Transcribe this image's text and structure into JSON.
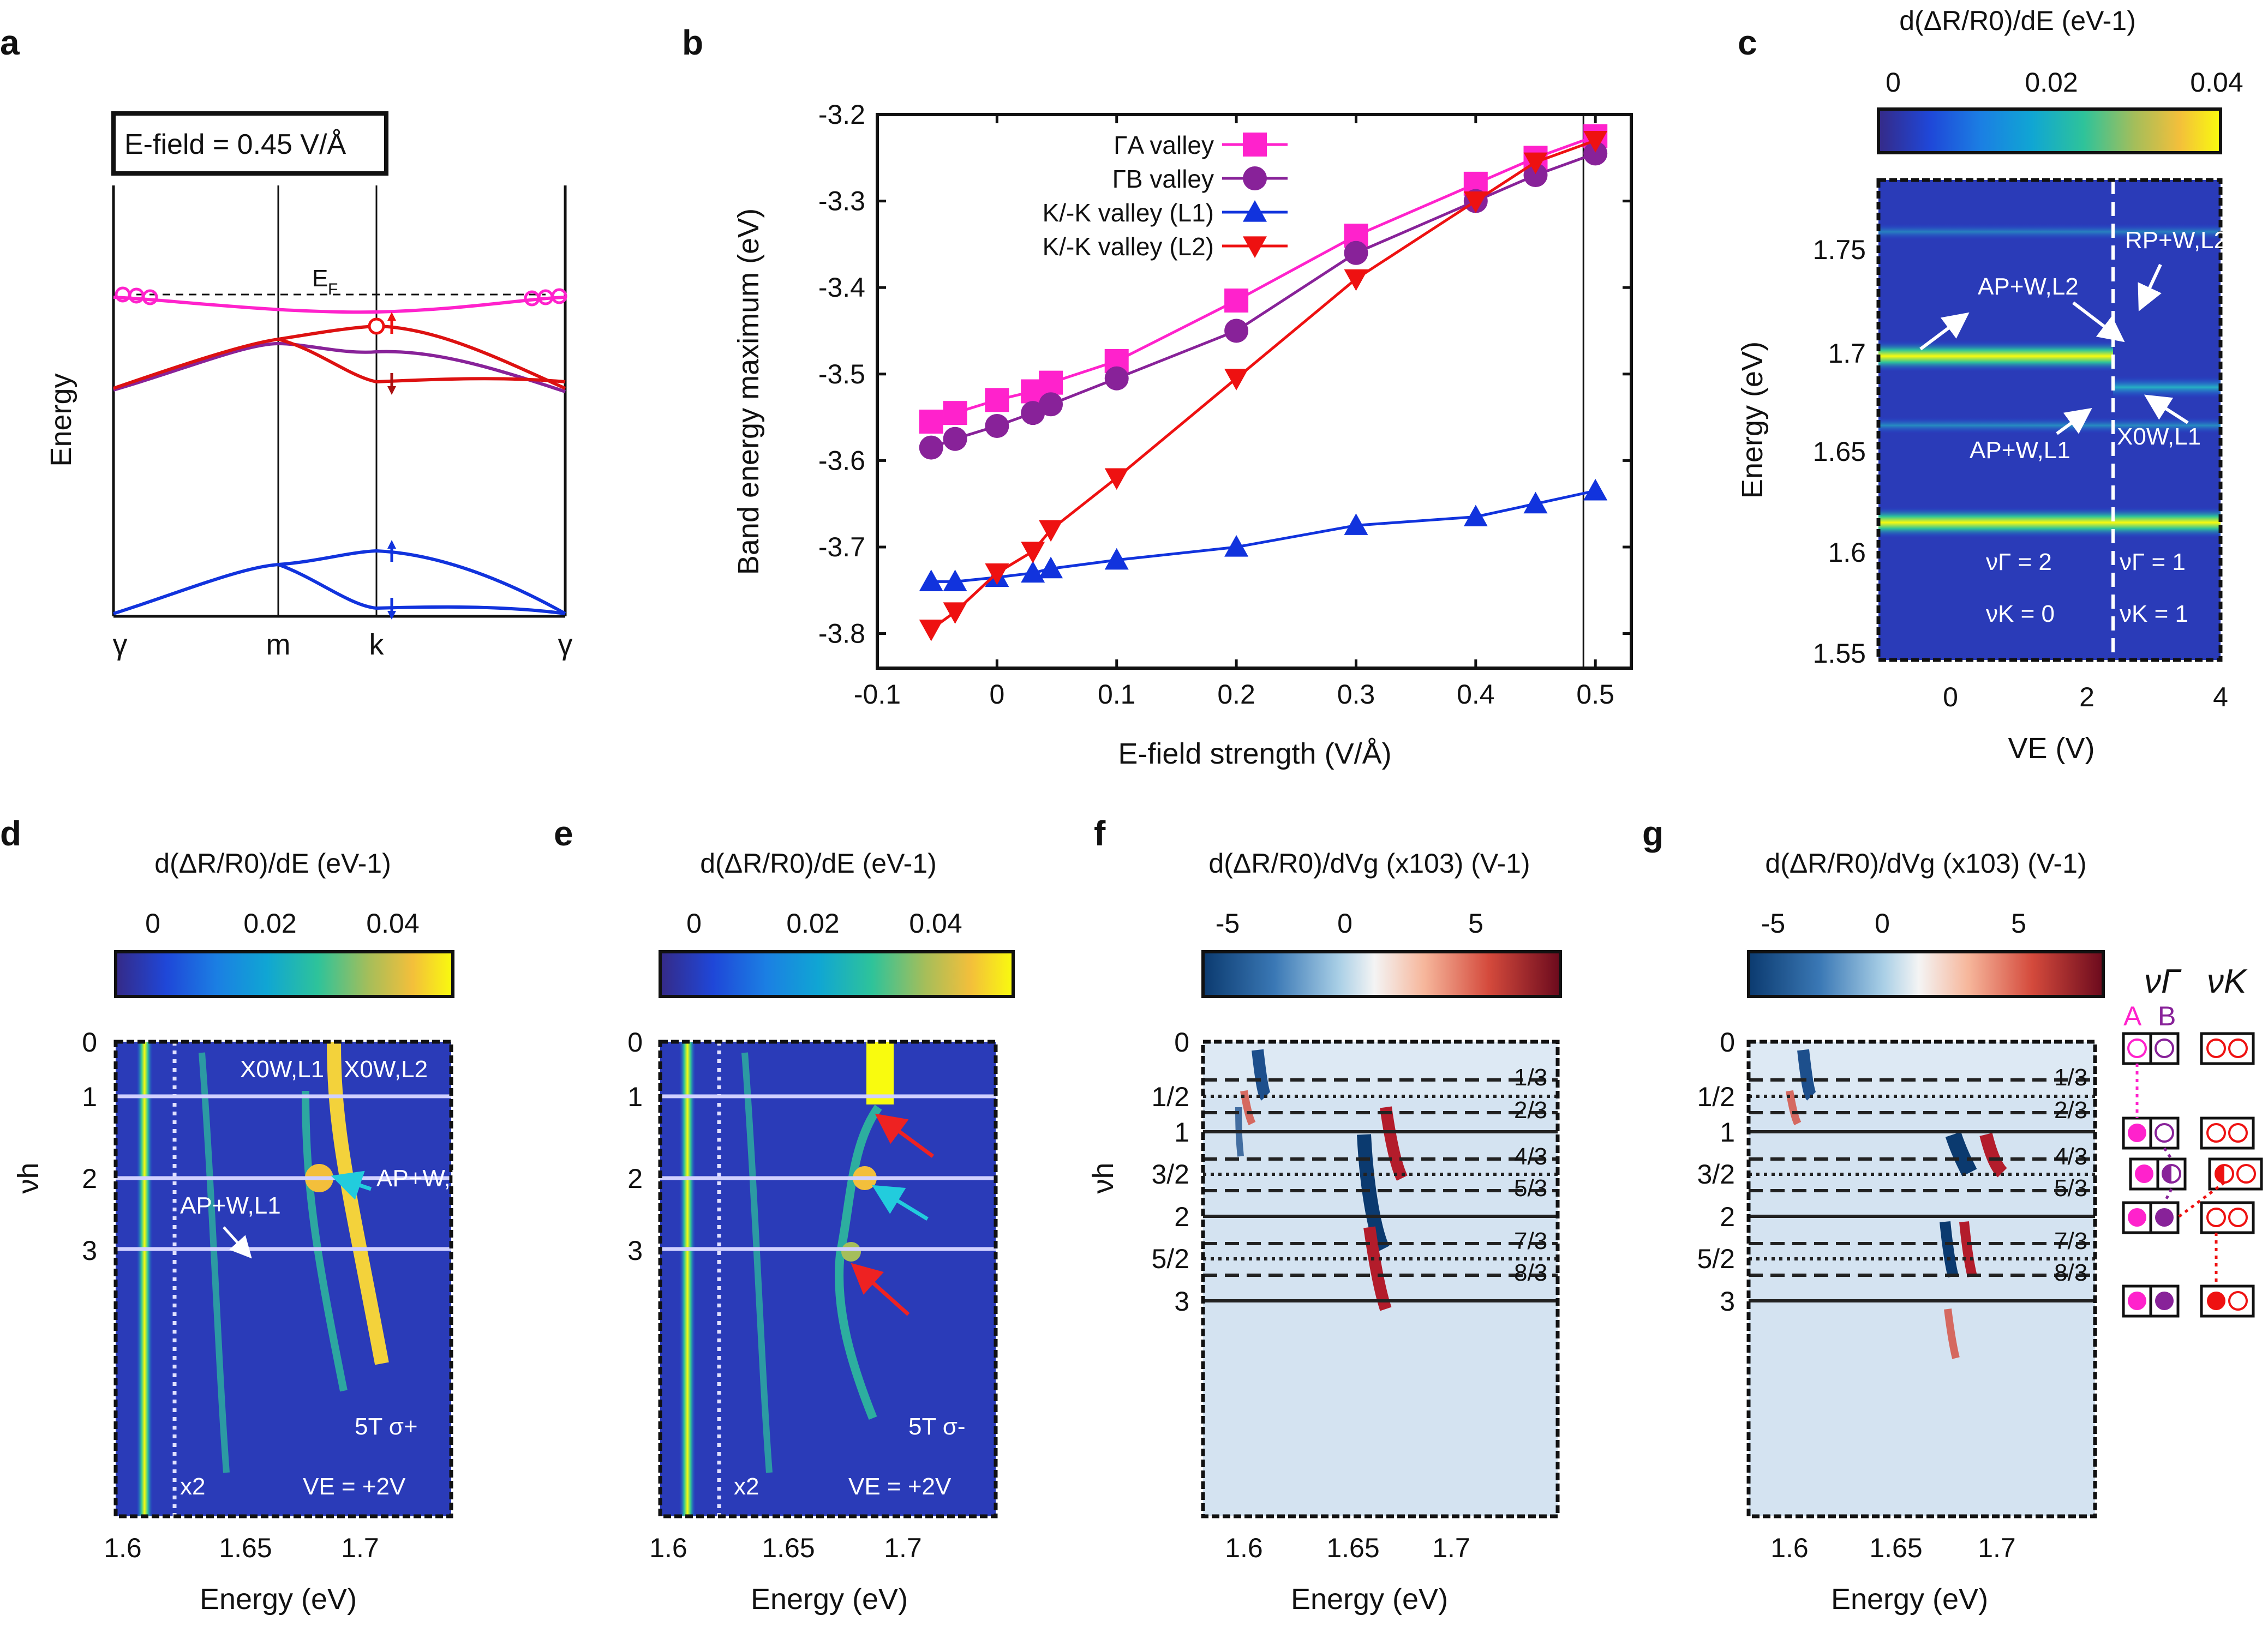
{
  "panels": {
    "a": {
      "label": "a",
      "ylabel": "Energy",
      "field_box": "E-field = 0.45 V/Å",
      "fermi_label": "E",
      "fermi_sub": "F",
      "kpoints": [
        "γ",
        "m",
        "k",
        "γ"
      ]
    },
    "b": {
      "label": "b"
    },
    "c": {
      "label": "c",
      "cbar_label": "d(ΔR/R0)/dE (eV-1)",
      "cbar_ticks": [
        "0",
        "0.02",
        "0.04"
      ],
      "ylabel": "Energy (eV)",
      "xlabel": "VE (V)",
      "yticks": [
        "1.75",
        "1.7",
        "1.65",
        "1.6",
        "1.55"
      ],
      "xticks": [
        "0",
        "2",
        "4"
      ],
      "ann": {
        "rp": "RP+W,L2",
        "ap2": "AP+W,L2",
        "ap1": "AP+W,L1",
        "x0": "X0W,L1",
        "nug_left": "νΓ = 2",
        "nug_right": "νΓ = 1",
        "nuk_left": "νK = 0",
        "nuk_right": "νK = 1"
      }
    },
    "d": {
      "label": "d",
      "cbar_label": "d(ΔR/R0)/dE (eV-1)",
      "cbar_ticks": [
        "0",
        "0.02",
        "0.04"
      ],
      "ylabel": "νh",
      "xlabel": "Energy (eV)",
      "yticks": [
        "0",
        "1",
        "2",
        "3"
      ],
      "xticks": [
        "1.6",
        "1.65",
        "1.7"
      ],
      "ann": {
        "x1": "X0W,L1",
        "x2": "X0W,L2",
        "ap2": "AP+W,L2",
        "ap1": "AP+W,L1",
        "field": "5T  σ+",
        "gate": "VE = +2V",
        "mult": "x2"
      }
    },
    "e": {
      "label": "e",
      "cbar_label": "d(ΔR/R0)/dE (eV-1)",
      "cbar_ticks": [
        "0",
        "0.02",
        "0.04"
      ],
      "xlabel": "Energy (eV)",
      "yticks": [
        "0",
        "1",
        "2",
        "3"
      ],
      "xticks": [
        "1.6",
        "1.65",
        "1.7"
      ],
      "ann": {
        "field": "5T  σ-",
        "gate": "VE = +2V",
        "mult": "x2"
      }
    },
    "f": {
      "label": "f",
      "cbar_label": "d(ΔR/R0)/dVg (x103) (V-1)",
      "cbar_ticks": [
        "-5",
        "0",
        "5"
      ],
      "ylabel": "νh",
      "xlabel": "Energy (eV)",
      "yticks": [
        "0",
        "1/2",
        "1",
        "3/2",
        "2",
        "5/2",
        "3"
      ],
      "xticks": [
        "1.6",
        "1.65",
        "1.7"
      ],
      "fractions": [
        "1/3",
        "2/3",
        "4/3",
        "5/3",
        "7/3",
        "8/3"
      ]
    },
    "g": {
      "label": "g",
      "cbar_label": "d(ΔR/R0)/dVg (x103) (V-1)",
      "cbar_ticks": [
        "-5",
        "0",
        "5"
      ],
      "xlabel": "Energy (eV)",
      "yticks": [
        "0",
        "1/2",
        "1",
        "3/2",
        "2",
        "5/2",
        "3"
      ],
      "xticks": [
        "1.6",
        "1.65",
        "1.7"
      ],
      "fractions": [
        "1/3",
        "2/3",
        "4/3",
        "5/3",
        "7/3",
        "8/3"
      ],
      "legend": {
        "nu_gamma": "νΓ",
        "nu_k": "νK",
        "a": "A",
        "b": "B"
      }
    }
  },
  "colors": {
    "gamma_a": "#ff22cc",
    "gamma_b": "#882299",
    "k_l1": "#1133dd",
    "k_l2": "#ee1111",
    "cyan_arrow": "#22ccdd",
    "red_arrow": "#ee2222"
  },
  "chart_data": {
    "type": "line",
    "title": "",
    "xlabel": "E-field strength (V/Å)",
    "ylabel": "Band energy maximum (eV)",
    "xlim": [
      -0.1,
      0.53
    ],
    "ylim": [
      -3.84,
      -3.2
    ],
    "xticks": [
      "-0.1",
      "0",
      "0.1",
      "0.2",
      "0.3",
      "0.4",
      "0.5"
    ],
    "yticks": [
      "-3.2",
      "-3.3",
      "-3.4",
      "-3.5",
      "-3.6",
      "-3.7",
      "-3.8"
    ],
    "series": [
      {
        "name": "ΓA valley",
        "marker": "square",
        "color": "#ff22cc",
        "x": [
          -0.055,
          -0.035,
          0,
          0.03,
          0.045,
          0.1,
          0.2,
          0.3,
          0.4,
          0.45,
          0.5
        ],
        "y": [
          -3.555,
          -3.545,
          -3.53,
          -3.52,
          -3.51,
          -3.485,
          -3.415,
          -3.34,
          -3.28,
          -3.25,
          -3.225
        ]
      },
      {
        "name": "ΓB valley",
        "marker": "circle",
        "color": "#882299",
        "x": [
          -0.055,
          -0.035,
          0,
          0.03,
          0.045,
          0.1,
          0.2,
          0.3,
          0.4,
          0.45,
          0.5
        ],
        "y": [
          -3.585,
          -3.575,
          -3.56,
          -3.545,
          -3.535,
          -3.505,
          -3.45,
          -3.36,
          -3.3,
          -3.27,
          -3.245
        ]
      },
      {
        "name": "K/-K valley (L1)",
        "marker": "triangle-up",
        "color": "#1133dd",
        "x": [
          -0.055,
          -0.035,
          0,
          0.03,
          0.045,
          0.1,
          0.2,
          0.3,
          0.4,
          0.45,
          0.5
        ],
        "y": [
          -3.74,
          -3.74,
          -3.735,
          -3.73,
          -3.725,
          -3.715,
          -3.7,
          -3.675,
          -3.665,
          -3.65,
          -3.635
        ]
      },
      {
        "name": "K/-K valley (L2)",
        "marker": "triangle-down",
        "color": "#ee1111",
        "x": [
          -0.055,
          -0.035,
          0,
          0.03,
          0.045,
          0.1,
          0.2,
          0.3,
          0.4,
          0.45,
          0.5
        ],
        "y": [
          -3.795,
          -3.775,
          -3.73,
          -3.705,
          -3.68,
          -3.62,
          -3.505,
          -3.39,
          -3.3,
          -3.255,
          -3.23
        ]
      }
    ]
  }
}
